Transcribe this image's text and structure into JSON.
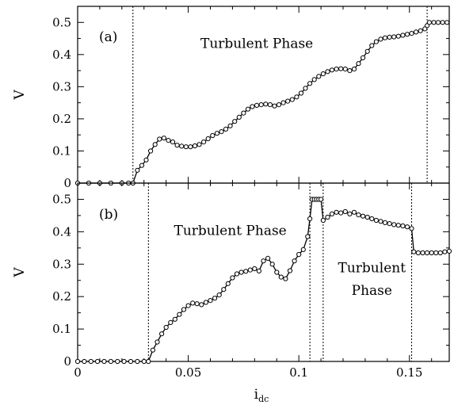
{
  "chart_data": [
    {
      "type": "line",
      "panel_label": "(a)",
      "xlabel": "i",
      "xlabel_sub": "dc",
      "ylabel": "V",
      "xlim": [
        0,
        0.168
      ],
      "ylim": [
        0,
        0.55
      ],
      "xticks": [
        0,
        0.05,
        0.1,
        0.15
      ],
      "xtick_labels": [
        "0",
        "0.05",
        "0.1",
        "0.15"
      ],
      "yticks": [
        0,
        0.1,
        0.2,
        0.3,
        0.4,
        0.5
      ],
      "ytick_labels": [
        "0",
        "0.1",
        "0.2",
        "0.3",
        "0.4",
        "0.5"
      ],
      "vlines": [
        0.025,
        0.158
      ],
      "annotations": [
        {
          "text": "Turbulent Phase",
          "x": 0.081,
          "y": 0.42
        }
      ],
      "series": [
        {
          "markers": "open-circle",
          "points": [
            [
              0.0,
              0.0
            ],
            [
              0.005,
              0.0
            ],
            [
              0.01,
              0.0
            ],
            [
              0.015,
              0.0
            ],
            [
              0.02,
              0.0
            ],
            [
              0.023,
              0.0
            ],
            [
              0.025,
              0.0
            ],
            [
              0.027,
              0.04
            ],
            [
              0.029,
              0.055
            ],
            [
              0.031,
              0.072
            ],
            [
              0.033,
              0.1
            ],
            [
              0.035,
              0.12
            ],
            [
              0.037,
              0.137
            ],
            [
              0.039,
              0.14
            ],
            [
              0.041,
              0.133
            ],
            [
              0.043,
              0.128
            ],
            [
              0.045,
              0.118
            ],
            [
              0.047,
              0.115
            ],
            [
              0.049,
              0.113
            ],
            [
              0.051,
              0.113
            ],
            [
              0.053,
              0.116
            ],
            [
              0.055,
              0.12
            ],
            [
              0.057,
              0.128
            ],
            [
              0.059,
              0.138
            ],
            [
              0.061,
              0.148
            ],
            [
              0.063,
              0.155
            ],
            [
              0.065,
              0.16
            ],
            [
              0.067,
              0.168
            ],
            [
              0.069,
              0.178
            ],
            [
              0.071,
              0.192
            ],
            [
              0.073,
              0.205
            ],
            [
              0.075,
              0.218
            ],
            [
              0.077,
              0.23
            ],
            [
              0.079,
              0.238
            ],
            [
              0.081,
              0.242
            ],
            [
              0.083,
              0.244
            ],
            [
              0.085,
              0.246
            ],
            [
              0.087,
              0.244
            ],
            [
              0.089,
              0.24
            ],
            [
              0.091,
              0.244
            ],
            [
              0.093,
              0.25
            ],
            [
              0.095,
              0.255
            ],
            [
              0.097,
              0.26
            ],
            [
              0.099,
              0.268
            ],
            [
              0.101,
              0.28
            ],
            [
              0.103,
              0.295
            ],
            [
              0.105,
              0.31
            ],
            [
              0.107,
              0.322
            ],
            [
              0.109,
              0.332
            ],
            [
              0.111,
              0.34
            ],
            [
              0.113,
              0.347
            ],
            [
              0.115,
              0.352
            ],
            [
              0.117,
              0.355
            ],
            [
              0.119,
              0.356
            ],
            [
              0.121,
              0.355
            ],
            [
              0.123,
              0.35
            ],
            [
              0.125,
              0.355
            ],
            [
              0.127,
              0.372
            ],
            [
              0.129,
              0.39
            ],
            [
              0.131,
              0.41
            ],
            [
              0.133,
              0.428
            ],
            [
              0.135,
              0.44
            ],
            [
              0.137,
              0.448
            ],
            [
              0.139,
              0.452
            ],
            [
              0.141,
              0.454
            ],
            [
              0.143,
              0.455
            ],
            [
              0.145,
              0.457
            ],
            [
              0.147,
              0.46
            ],
            [
              0.149,
              0.463
            ],
            [
              0.151,
              0.466
            ],
            [
              0.153,
              0.47
            ],
            [
              0.155,
              0.474
            ],
            [
              0.157,
              0.48
            ],
            [
              0.158,
              0.49
            ],
            [
              0.159,
              0.5
            ],
            [
              0.161,
              0.5
            ],
            [
              0.163,
              0.5
            ],
            [
              0.165,
              0.5
            ],
            [
              0.167,
              0.5
            ]
          ]
        }
      ]
    },
    {
      "type": "line",
      "panel_label": "(b)",
      "xlabel": "i",
      "xlabel_sub": "dc",
      "ylabel": "V",
      "xlim": [
        0,
        0.168
      ],
      "ylim": [
        0,
        0.55
      ],
      "xticks": [
        0,
        0.05,
        0.1,
        0.15
      ],
      "xtick_labels": [
        "0",
        "0.05",
        "0.1",
        "0.15"
      ],
      "yticks": [
        0,
        0.1,
        0.2,
        0.3,
        0.4,
        0.5
      ],
      "ytick_labels": [
        "0",
        "0.1",
        "0.2",
        "0.3",
        "0.4",
        "0.5"
      ],
      "vlines": [
        0.032,
        0.105,
        0.111,
        0.151
      ],
      "annotations": [
        {
          "text": "Turbulent Phase",
          "x": 0.069,
          "y": 0.39
        },
        {
          "text": "Turbulent",
          "x": 0.133,
          "y": 0.275
        },
        {
          "text": "Phase",
          "x": 0.133,
          "y": 0.205
        }
      ],
      "series": [
        {
          "markers": "open-circle",
          "points": [
            [
              0.0,
              0.0
            ],
            [
              0.003,
              0.0
            ],
            [
              0.006,
              0.0
            ],
            [
              0.009,
              0.0
            ],
            [
              0.012,
              0.0
            ],
            [
              0.015,
              0.0
            ],
            [
              0.018,
              0.0
            ],
            [
              0.021,
              0.0
            ],
            [
              0.024,
              0.0
            ],
            [
              0.027,
              0.0
            ],
            [
              0.03,
              0.0
            ],
            [
              0.032,
              0.0
            ],
            [
              0.034,
              0.035
            ],
            [
              0.036,
              0.06
            ],
            [
              0.038,
              0.085
            ],
            [
              0.04,
              0.105
            ],
            [
              0.042,
              0.12
            ],
            [
              0.044,
              0.13
            ],
            [
              0.046,
              0.145
            ],
            [
              0.048,
              0.16
            ],
            [
              0.05,
              0.172
            ],
            [
              0.052,
              0.18
            ],
            [
              0.054,
              0.178
            ],
            [
              0.056,
              0.175
            ],
            [
              0.058,
              0.182
            ],
            [
              0.06,
              0.188
            ],
            [
              0.062,
              0.195
            ],
            [
              0.064,
              0.205
            ],
            [
              0.066,
              0.222
            ],
            [
              0.068,
              0.24
            ],
            [
              0.07,
              0.258
            ],
            [
              0.072,
              0.27
            ],
            [
              0.074,
              0.275
            ],
            [
              0.076,
              0.278
            ],
            [
              0.078,
              0.282
            ],
            [
              0.08,
              0.286
            ],
            [
              0.082,
              0.279
            ],
            [
              0.084,
              0.31
            ],
            [
              0.086,
              0.318
            ],
            [
              0.088,
              0.3
            ],
            [
              0.09,
              0.275
            ],
            [
              0.092,
              0.26
            ],
            [
              0.094,
              0.255
            ],
            [
              0.096,
              0.28
            ],
            [
              0.098,
              0.31
            ],
            [
              0.1,
              0.33
            ],
            [
              0.102,
              0.345
            ],
            [
              0.104,
              0.385
            ],
            [
              0.105,
              0.44
            ],
            [
              0.106,
              0.5
            ],
            [
              0.107,
              0.5
            ],
            [
              0.108,
              0.5
            ],
            [
              0.109,
              0.5
            ],
            [
              0.11,
              0.5
            ],
            [
              0.111,
              0.435
            ],
            [
              0.113,
              0.445
            ],
            [
              0.115,
              0.455
            ],
            [
              0.117,
              0.46
            ],
            [
              0.119,
              0.458
            ],
            [
              0.121,
              0.462
            ],
            [
              0.123,
              0.455
            ],
            [
              0.125,
              0.46
            ],
            [
              0.127,
              0.452
            ],
            [
              0.129,
              0.448
            ],
            [
              0.131,
              0.445
            ],
            [
              0.133,
              0.44
            ],
            [
              0.135,
              0.435
            ],
            [
              0.137,
              0.432
            ],
            [
              0.139,
              0.428
            ],
            [
              0.141,
              0.425
            ],
            [
              0.143,
              0.422
            ],
            [
              0.145,
              0.42
            ],
            [
              0.147,
              0.418
            ],
            [
              0.149,
              0.415
            ],
            [
              0.151,
              0.41
            ],
            [
              0.152,
              0.338
            ],
            [
              0.154,
              0.335
            ],
            [
              0.156,
              0.335
            ],
            [
              0.158,
              0.335
            ],
            [
              0.16,
              0.335
            ],
            [
              0.162,
              0.335
            ],
            [
              0.164,
              0.335
            ],
            [
              0.166,
              0.338
            ],
            [
              0.168,
              0.34
            ]
          ]
        }
      ]
    }
  ]
}
